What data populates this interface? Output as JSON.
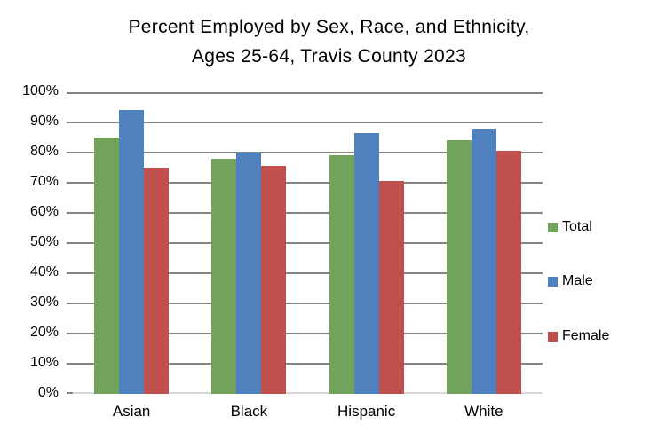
{
  "chart_data": {
    "type": "bar",
    "title_line1": "Percent Employed by Sex, Race, and Ethnicity,",
    "title_line2": "Ages 25-64, Travis County 2023",
    "categories": [
      "Asian",
      "Black",
      "Hispanic",
      "White"
    ],
    "series": [
      {
        "name": "Total",
        "color": "#71a35d",
        "values": [
          85,
          78,
          79,
          84
        ]
      },
      {
        "name": "Male",
        "color": "#4e81bd",
        "values": [
          94,
          80,
          86.5,
          88
        ]
      },
      {
        "name": "Female",
        "color": "#c0504d",
        "values": [
          75,
          75.5,
          70.5,
          80.5
        ]
      }
    ],
    "y_axis": {
      "min": 0,
      "max": 100,
      "step": 10,
      "tick_labels": [
        "0%",
        "10%",
        "20%",
        "30%",
        "40%",
        "50%",
        "60%",
        "70%",
        "80%",
        "90%",
        "100%"
      ]
    },
    "xlabel": "",
    "ylabel": "",
    "ylim": [
      0,
      100
    ],
    "grid": true,
    "legend_position": "right",
    "colors": {
      "gridline": "#848484",
      "axis_line": "#d9d9d9",
      "text": "#000000",
      "background": "#ffffff"
    }
  }
}
